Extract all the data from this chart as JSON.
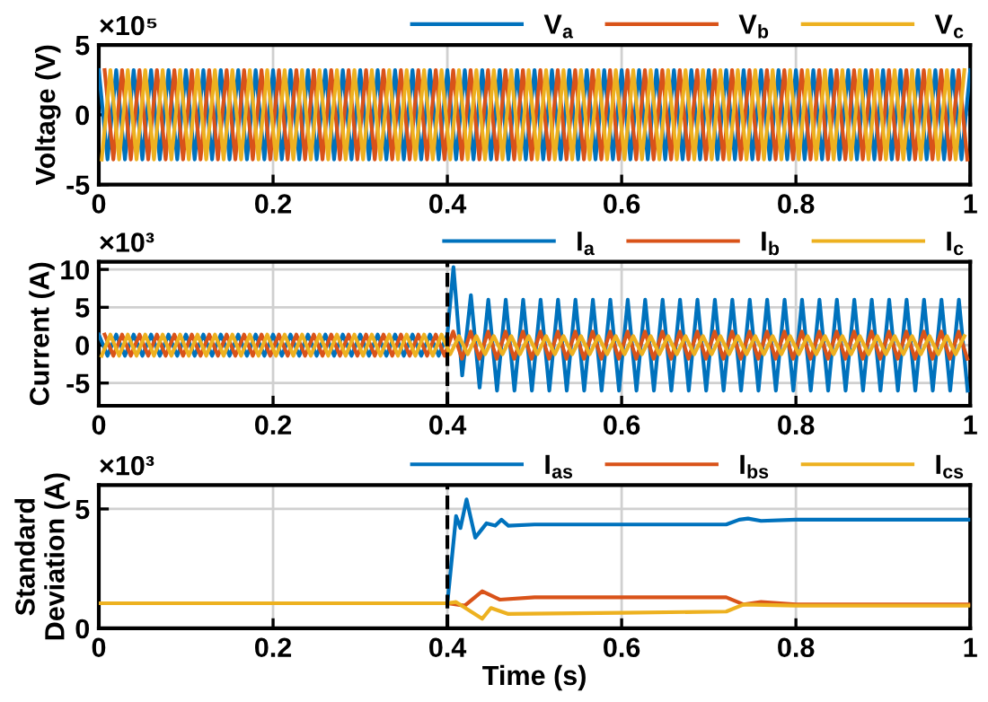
{
  "chart_data": [
    {
      "type": "line",
      "ylabel": "Voltage (V)",
      "annotations": [
        "×10⁵"
      ],
      "xlim": [
        0,
        1
      ],
      "ylim": [
        -5,
        5
      ],
      "xticks": [
        0,
        0.2,
        0.4,
        0.6,
        0.8,
        1
      ],
      "yticks": [
        -5,
        0,
        5
      ],
      "grid": true,
      "legend": "top right",
      "series": [
        {
          "name": "V$_{a}$",
          "color": "#0072bd",
          "x": [
            0,
            0.01,
            0.02,
            0.03,
            0.04,
            0.05,
            0.06,
            0.07,
            0.08,
            0.09,
            0.1,
            0.11,
            0.12,
            0.13,
            0.14,
            0.15,
            0.16,
            0.17,
            0.18,
            0.19,
            0.2,
            0.21,
            0.22,
            0.23,
            0.24,
            0.25,
            0.26,
            0.27,
            0.28,
            0.29,
            0.3,
            0.31,
            0.32,
            0.33,
            0.34,
            0.35,
            0.36,
            0.37,
            0.38,
            0.39,
            0.4,
            0.41,
            0.42,
            0.43,
            0.44,
            0.45,
            0.46,
            0.47,
            0.48,
            0.49,
            0.5,
            0.51,
            0.52,
            0.53,
            0.54,
            0.55,
            0.56,
            0.57,
            0.58,
            0.59,
            0.6,
            0.61,
            0.62,
            0.63,
            0.64,
            0.65,
            0.66,
            0.67,
            0.68,
            0.69,
            0.7,
            0.71,
            0.72,
            0.73,
            0.74,
            0.75,
            0.76,
            0.77,
            0.78,
            0.79,
            0.8,
            0.81,
            0.82,
            0.83,
            0.84,
            0.85,
            0.86,
            0.87,
            0.88,
            0.89,
            0.9,
            0.91,
            0.92,
            0.93,
            0.94,
            0.95,
            0.96,
            0.97,
            0.98,
            0.99,
            1
          ],
          "values": [
            3.2,
            -3.2,
            3.2,
            -3.2,
            3.2,
            -3.2,
            3.2,
            -3.2,
            3.2,
            -3.2,
            3.2,
            -3.2,
            3.2,
            -3.2,
            3.2,
            -3.2,
            3.2,
            -3.2,
            3.2,
            -3.2,
            3.2,
            -3.2,
            3.2,
            -3.2,
            3.2,
            -3.2,
            3.2,
            -3.2,
            3.2,
            -3.2,
            3.2,
            -3.2,
            3.2,
            -3.2,
            3.2,
            -3.2,
            3.2,
            -3.2,
            3.2,
            -3.2,
            3.2,
            -3.2,
            3.2,
            -3.2,
            3.2,
            -3.2,
            3.2,
            -3.2,
            3.2,
            -3.2,
            3.2,
            -3.2,
            3.2,
            -3.2,
            3.2,
            -3.2,
            3.2,
            -3.2,
            3.2,
            -3.2,
            3.2,
            -3.2,
            3.2,
            -3.2,
            3.2,
            -3.2,
            3.2,
            -3.2,
            3.2,
            -3.2,
            3.2,
            -3.2,
            3.2,
            -3.2,
            3.2,
            -3.2,
            3.2,
            -3.2,
            3.2,
            -3.2,
            3.2,
            -3.2,
            3.2,
            -3.2,
            3.2,
            -3.2,
            3.2,
            -3.2,
            3.2,
            -3.2,
            3.2,
            -3.2,
            3.2,
            -3.2,
            3.2,
            -3.2,
            3.2,
            -3.2,
            3.2,
            -3.2,
            3.2
          ]
        },
        {
          "name": "V$_{b}$",
          "color": "#d95319",
          "x": [
            0.0067,
            0.0167,
            0.0267,
            0.0367,
            0.0467,
            0.0567,
            0.0667,
            0.0767,
            0.0867,
            0.0967,
            0.1067,
            0.1167,
            0.1267,
            0.1367,
            0.1467,
            0.1567,
            0.1667,
            0.1767,
            0.1867,
            0.1967,
            0.2067,
            0.2167,
            0.2267,
            0.2367,
            0.2467,
            0.2567,
            0.2667,
            0.2767,
            0.2867,
            0.2967,
            0.3067,
            0.3167,
            0.3267,
            0.3367,
            0.3467,
            0.3567,
            0.3667,
            0.3767,
            0.3867,
            0.3967,
            0.4067,
            0.4167,
            0.4267,
            0.4367,
            0.4467,
            0.4567,
            0.4667,
            0.4767,
            0.4867,
            0.4967,
            0.5067,
            0.5167,
            0.5267,
            0.5367,
            0.5467,
            0.5567,
            0.5667,
            0.5767,
            0.5867,
            0.5967,
            0.6067,
            0.6167,
            0.6267,
            0.6367,
            0.6467,
            0.6567,
            0.6667,
            0.6767,
            0.6867,
            0.6967,
            0.7067,
            0.7167,
            0.7267,
            0.7367,
            0.7467,
            0.7567,
            0.7667,
            0.7767,
            0.7867,
            0.7967,
            0.8067,
            0.8167,
            0.8267,
            0.8367,
            0.8467,
            0.8567,
            0.8667,
            0.8767,
            0.8867,
            0.8967,
            0.9067,
            0.9167,
            0.9267,
            0.9367,
            0.9467,
            0.9567,
            0.9667,
            0.9767,
            0.9867,
            0.9967
          ],
          "values": [
            3.2,
            -3.2,
            3.2,
            -3.2,
            3.2,
            -3.2,
            3.2,
            -3.2,
            3.2,
            -3.2,
            3.2,
            -3.2,
            3.2,
            -3.2,
            3.2,
            -3.2,
            3.2,
            -3.2,
            3.2,
            -3.2,
            3.2,
            -3.2,
            3.2,
            -3.2,
            3.2,
            -3.2,
            3.2,
            -3.2,
            3.2,
            -3.2,
            3.2,
            -3.2,
            3.2,
            -3.2,
            3.2,
            -3.2,
            3.2,
            -3.2,
            3.2,
            -3.2,
            3.2,
            -3.2,
            3.2,
            -3.2,
            3.2,
            -3.2,
            3.2,
            -3.2,
            3.2,
            -3.2,
            3.2,
            -3.2,
            3.2,
            -3.2,
            3.2,
            -3.2,
            3.2,
            -3.2,
            3.2,
            -3.2,
            3.2,
            -3.2,
            3.2,
            -3.2,
            3.2,
            -3.2,
            3.2,
            -3.2,
            3.2,
            -3.2,
            3.2,
            -3.2,
            3.2,
            -3.2,
            3.2,
            -3.2,
            3.2,
            -3.2,
            3.2,
            -3.2,
            3.2,
            -3.2,
            3.2,
            -3.2,
            3.2,
            -3.2,
            3.2,
            -3.2,
            3.2,
            -3.2,
            3.2,
            -3.2,
            3.2,
            -3.2,
            3.2,
            -3.2,
            3.2,
            -3.2,
            3.2,
            -3.2
          ]
        },
        {
          "name": "V$_{c}$",
          "color": "#edb120",
          "x": [
            0.0033,
            0.0133,
            0.0233,
            0.0333,
            0.0433,
            0.0533,
            0.0633,
            0.0733,
            0.0833,
            0.0933,
            0.1033,
            0.1133,
            0.1233,
            0.1333,
            0.1433,
            0.1533,
            0.1633,
            0.1733,
            0.1833,
            0.1933,
            0.2033,
            0.2133,
            0.2233,
            0.2333,
            0.2433,
            0.2533,
            0.2633,
            0.2733,
            0.2833,
            0.2933,
            0.3033,
            0.3133,
            0.3233,
            0.3333,
            0.3433,
            0.3533,
            0.3633,
            0.3733,
            0.3833,
            0.3933,
            0.4033,
            0.4133,
            0.4233,
            0.4333,
            0.4433,
            0.4533,
            0.4633,
            0.4733,
            0.4833,
            0.4933,
            0.5033,
            0.5133,
            0.5233,
            0.5333,
            0.5433,
            0.5533,
            0.5633,
            0.5733,
            0.5833,
            0.5933,
            0.6033,
            0.6133,
            0.6233,
            0.6333,
            0.6433,
            0.6533,
            0.6633,
            0.6733,
            0.6833,
            0.6933,
            0.7033,
            0.7133,
            0.7233,
            0.7333,
            0.7433,
            0.7533,
            0.7633,
            0.7733,
            0.7833,
            0.7933,
            0.8033,
            0.8133,
            0.8233,
            0.8333,
            0.8433,
            0.8533,
            0.8633,
            0.8733,
            0.8833,
            0.8933,
            0.9033,
            0.9133,
            0.9233,
            0.9333,
            0.9433,
            0.9533,
            0.9633,
            0.9733,
            0.9833,
            0.9933
          ],
          "values": [
            -3.2,
            3.2,
            -3.2,
            3.2,
            -3.2,
            3.2,
            -3.2,
            3.2,
            -3.2,
            3.2,
            -3.2,
            3.2,
            -3.2,
            3.2,
            -3.2,
            3.2,
            -3.2,
            3.2,
            -3.2,
            3.2,
            -3.2,
            3.2,
            -3.2,
            3.2,
            -3.2,
            3.2,
            -3.2,
            3.2,
            -3.2,
            3.2,
            -3.2,
            3.2,
            -3.2,
            3.2,
            -3.2,
            3.2,
            -3.2,
            3.2,
            -3.2,
            3.2,
            -3.2,
            3.2,
            -3.2,
            3.2,
            -3.2,
            3.2,
            -3.2,
            3.2,
            -3.2,
            3.2,
            -3.2,
            3.2,
            -3.2,
            3.2,
            -3.2,
            3.2,
            -3.2,
            3.2,
            -3.2,
            3.2,
            -3.2,
            3.2,
            -3.2,
            3.2,
            -3.2,
            3.2,
            -3.2,
            3.2,
            -3.2,
            3.2,
            -3.2,
            3.2,
            -3.2,
            3.2,
            -3.2,
            3.2,
            -3.2,
            3.2,
            -3.2,
            3.2,
            -3.2,
            3.2,
            -3.2,
            3.2,
            -3.2,
            3.2,
            -3.2,
            3.2,
            -3.2,
            3.2,
            -3.2,
            3.2,
            -3.2,
            3.2,
            -3.2,
            3.2,
            -3.2,
            3.2,
            -3.2,
            3.2
          ]
        }
      ]
    },
    {
      "type": "line",
      "ylabel": "Current (A)",
      "annotations": [
        "×10³"
      ],
      "xlim": [
        0,
        1
      ],
      "ylim": [
        -8,
        11
      ],
      "xticks": [
        0,
        0.2,
        0.4,
        0.6,
        0.8,
        1
      ],
      "yticks": [
        -5,
        0,
        5,
        10
      ],
      "grid": true,
      "legend": "top right",
      "ref_lines": [
        {
          "axis": "x",
          "value": 0.4,
          "color": "#000000",
          "line_style": "dashed"
        }
      ],
      "series": [
        {
          "name": "I$_{a}$",
          "color": "#0072bd",
          "x": [
            0,
            0.01,
            0.02,
            0.03,
            0.04,
            0.05,
            0.06,
            0.07,
            0.08,
            0.09,
            0.1,
            0.11,
            0.12,
            0.13,
            0.14,
            0.15,
            0.16,
            0.17,
            0.18,
            0.19,
            0.2,
            0.21,
            0.22,
            0.23,
            0.24,
            0.25,
            0.26,
            0.27,
            0.28,
            0.29,
            0.3,
            0.31,
            0.32,
            0.33,
            0.34,
            0.35,
            0.36,
            0.37,
            0.38,
            0.39,
            0.4,
            0.407,
            0.417,
            0.427,
            0.437,
            0.447,
            0.457,
            0.467,
            0.477,
            0.487,
            0.497,
            0.507,
            0.517,
            0.527,
            0.537,
            0.547,
            0.557,
            0.567,
            0.577,
            0.587,
            0.597,
            0.607,
            0.617,
            0.627,
            0.637,
            0.647,
            0.657,
            0.667,
            0.677,
            0.687,
            0.697,
            0.707,
            0.717,
            0.727,
            0.737,
            0.747,
            0.757,
            0.767,
            0.777,
            0.787,
            0.797,
            0.807,
            0.817,
            0.827,
            0.837,
            0.847,
            0.857,
            0.867,
            0.877,
            0.887,
            0.897,
            0.907,
            0.917,
            0.927,
            0.937,
            0.947,
            0.957,
            0.967,
            0.977,
            0.987,
            0.997
          ],
          "values": [
            1.4,
            -1.4,
            1.4,
            -1.4,
            1.4,
            -1.4,
            1.4,
            -1.4,
            1.4,
            -1.4,
            1.4,
            -1.4,
            1.4,
            -1.4,
            1.4,
            -1.4,
            1.4,
            -1.4,
            1.4,
            -1.4,
            1.4,
            -1.4,
            1.4,
            -1.4,
            1.4,
            -1.4,
            1.4,
            -1.4,
            1.4,
            -1.4,
            1.4,
            -1.4,
            1.4,
            -1.4,
            1.4,
            -1.4,
            1.4,
            -1.4,
            1.4,
            -1.4,
            1.4,
            10.3,
            -4,
            6.6,
            -5.6,
            6,
            -6,
            6,
            -6,
            6,
            -6,
            6,
            -6,
            6,
            -6,
            6,
            -6,
            6,
            -6,
            6,
            -6,
            6,
            -6,
            6,
            -6,
            6,
            -6,
            6,
            -6,
            6,
            -6,
            6,
            -6,
            6,
            -6,
            6,
            -6,
            6,
            -6,
            6,
            -6,
            6,
            -6,
            6,
            -6,
            6,
            -6,
            6,
            -6,
            6,
            -6,
            6,
            -6,
            6,
            -6,
            6,
            -6,
            6,
            -6,
            6,
            -6
          ]
        },
        {
          "name": "I$_{b}$",
          "color": "#d95319",
          "x": [
            0.0067,
            0.0167,
            0.0267,
            0.0367,
            0.0467,
            0.0567,
            0.0667,
            0.0767,
            0.0867,
            0.0967,
            0.1067,
            0.1167,
            0.1267,
            0.1367,
            0.1467,
            0.1567,
            0.1667,
            0.1767,
            0.1867,
            0.1967,
            0.2067,
            0.2167,
            0.2267,
            0.2367,
            0.2467,
            0.2567,
            0.2667,
            0.2767,
            0.2867,
            0.2967,
            0.3067,
            0.3167,
            0.3267,
            0.3367,
            0.3467,
            0.3567,
            0.3667,
            0.3767,
            0.3867,
            0.3967,
            0.4067,
            0.4167,
            0.4267,
            0.4367,
            0.4467,
            0.4567,
            0.4667,
            0.4767,
            0.4867,
            0.4967,
            0.5067,
            0.5167,
            0.5267,
            0.5367,
            0.5467,
            0.5567,
            0.5667,
            0.5767,
            0.5867,
            0.5967,
            0.6067,
            0.6167,
            0.6267,
            0.6367,
            0.6467,
            0.6567,
            0.6667,
            0.6767,
            0.6867,
            0.6967,
            0.7067,
            0.7167,
            0.7267,
            0.7367,
            0.7467,
            0.7567,
            0.7667,
            0.7767,
            0.7867,
            0.7967,
            0.8067,
            0.8167,
            0.8267,
            0.8367,
            0.8467,
            0.8567,
            0.8667,
            0.8767,
            0.8867,
            0.8967,
            0.9067,
            0.9167,
            0.9267,
            0.9367,
            0.9467,
            0.9567,
            0.9667,
            0.9767,
            0.9867,
            0.9967
          ],
          "values": [
            1.4,
            -1.4,
            1.4,
            -1.4,
            1.4,
            -1.4,
            1.4,
            -1.4,
            1.4,
            -1.4,
            1.4,
            -1.4,
            1.4,
            -1.4,
            1.4,
            -1.4,
            1.4,
            -1.4,
            1.4,
            -1.4,
            1.4,
            -1.4,
            1.4,
            -1.4,
            1.4,
            -1.4,
            1.4,
            -1.4,
            1.4,
            -1.4,
            1.4,
            -1.4,
            1.4,
            -1.4,
            1.4,
            -1.4,
            1.4,
            -1.4,
            1.4,
            -1.4,
            1.8,
            -1.8,
            1.8,
            -1.8,
            1.8,
            -1.8,
            1.8,
            -1.8,
            1.8,
            -1.8,
            1.8,
            -1.8,
            1.8,
            -1.8,
            1.8,
            -1.8,
            1.8,
            -1.8,
            1.8,
            -1.8,
            1.8,
            -1.8,
            1.8,
            -1.8,
            1.8,
            -1.8,
            1.8,
            -1.8,
            1.8,
            -1.8,
            1.8,
            -1.8,
            1.8,
            -1.8,
            1.8,
            -1.8,
            1.8,
            -1.8,
            1.8,
            -1.8,
            1.8,
            -1.8,
            1.8,
            -1.8,
            1.8,
            -1.8,
            1.8,
            -1.8,
            1.8,
            -1.8,
            1.8,
            -1.8,
            1.8,
            -1.8,
            1.8,
            -1.8,
            1.8,
            -1.8,
            1.8,
            -1.8
          ]
        },
        {
          "name": "I$_{c}$",
          "color": "#edb120",
          "x": [
            0.0033,
            0.0133,
            0.0233,
            0.0333,
            0.0433,
            0.0533,
            0.0633,
            0.0733,
            0.0833,
            0.0933,
            0.1033,
            0.1133,
            0.1233,
            0.1333,
            0.1433,
            0.1533,
            0.1633,
            0.1733,
            0.1833,
            0.1933,
            0.2033,
            0.2133,
            0.2233,
            0.2333,
            0.2433,
            0.2533,
            0.2633,
            0.2733,
            0.2833,
            0.2933,
            0.3033,
            0.3133,
            0.3233,
            0.3333,
            0.3433,
            0.3533,
            0.3633,
            0.3733,
            0.3833,
            0.3933,
            0.4033,
            0.4133,
            0.4233,
            0.4333,
            0.4433,
            0.4533,
            0.4633,
            0.4733,
            0.4833,
            0.4933,
            0.5033,
            0.5133,
            0.5233,
            0.5333,
            0.5433,
            0.5533,
            0.5633,
            0.5733,
            0.5833,
            0.5933,
            0.6033,
            0.6133,
            0.6233,
            0.6333,
            0.6433,
            0.6533,
            0.6633,
            0.6733,
            0.6833,
            0.6933,
            0.7033,
            0.7133,
            0.7233,
            0.7333,
            0.7433,
            0.7533,
            0.7633,
            0.7733,
            0.7833,
            0.7933,
            0.8033,
            0.8133,
            0.8233,
            0.8333,
            0.8433,
            0.8533,
            0.8633,
            0.8733,
            0.8833,
            0.8933,
            0.9033,
            0.9133,
            0.9233,
            0.9333,
            0.9433,
            0.9533,
            0.9633,
            0.9733,
            0.9833,
            0.9933
          ],
          "values": [
            -1.4,
            1.4,
            -1.4,
            1.4,
            -1.4,
            1.4,
            -1.4,
            1.4,
            -1.4,
            1.4,
            -1.4,
            1.4,
            -1.4,
            1.4,
            -1.4,
            1.4,
            -1.4,
            1.4,
            -1.4,
            1.4,
            -1.4,
            1.4,
            -1.4,
            1.4,
            -1.4,
            1.4,
            -1.4,
            1.4,
            -1.4,
            1.4,
            -1.4,
            1.4,
            -1.4,
            1.4,
            -1.4,
            1.4,
            -1.4,
            1.4,
            -1.4,
            1.4,
            -1.2,
            1.2,
            -1.2,
            1.2,
            -1.2,
            1.2,
            -1.2,
            1.2,
            -1.2,
            1.2,
            -1.2,
            1.2,
            -1.2,
            1.2,
            -1.2,
            1.2,
            -1.2,
            1.2,
            -1.2,
            1.2,
            -1.2,
            1.2,
            -1.2,
            1.2,
            -1.2,
            1.2,
            -1.2,
            1.2,
            -1.2,
            1.2,
            -1.2,
            1.2,
            -1.2,
            1.2,
            -1.2,
            1.2,
            -1.2,
            1.2,
            -1.2,
            1.2,
            -1.2,
            1.2,
            -1.2,
            1.2,
            -1.2,
            1.2,
            -1.2,
            1.2,
            -1.2,
            1.2,
            -1.2,
            1.2,
            -1.2,
            1.2,
            -1.2,
            1.2,
            -1.2,
            1.2,
            -1.2,
            1.2
          ]
        }
      ]
    },
    {
      "type": "line",
      "ylabel": "Standard\nDeviation (A)",
      "xlabel": "Time (s)",
      "annotations": [
        "×10³"
      ],
      "xlim": [
        0,
        1
      ],
      "ylim": [
        0,
        6
      ],
      "xticks": [
        0,
        0.2,
        0.4,
        0.6,
        0.8,
        1
      ],
      "yticks": [
        0,
        5
      ],
      "grid": true,
      "legend": "top right",
      "ref_lines": [
        {
          "axis": "x",
          "value": 0.4,
          "color": "#000000",
          "line_style": "dashed"
        }
      ],
      "series": [
        {
          "name": "I$_{as}$",
          "color": "#0072bd",
          "x": [
            0.4,
            0.41,
            0.415,
            0.422,
            0.432,
            0.445,
            0.455,
            0.462,
            0.47,
            0.5,
            0.72,
            0.735,
            0.745,
            0.76,
            0.8,
            1
          ],
          "values": [
            1.05,
            4.7,
            4.2,
            5.4,
            3.8,
            4.4,
            4.3,
            4.55,
            4.3,
            4.35,
            4.35,
            4.55,
            4.6,
            4.5,
            4.55,
            4.55
          ]
        },
        {
          "name": "I$_{bs}$",
          "color": "#d95319",
          "x": [
            0,
            0.4,
            0.42,
            0.44,
            0.46,
            0.5,
            0.72,
            0.74,
            0.76,
            0.8,
            1
          ],
          "values": [
            1.05,
            1.05,
            0.95,
            1.55,
            1.2,
            1.3,
            1.3,
            1.0,
            1.1,
            1.0,
            1.0
          ]
        },
        {
          "name": "I$_{cs}$",
          "color": "#edb120",
          "x": [
            0,
            0.4,
            0.41,
            0.44,
            0.45,
            0.47,
            0.6,
            0.72,
            0.74,
            0.8,
            1
          ],
          "values": [
            1.05,
            1.05,
            1.1,
            0.4,
            0.85,
            0.6,
            0.65,
            0.7,
            1.0,
            0.95,
            0.95
          ]
        }
      ]
    }
  ]
}
